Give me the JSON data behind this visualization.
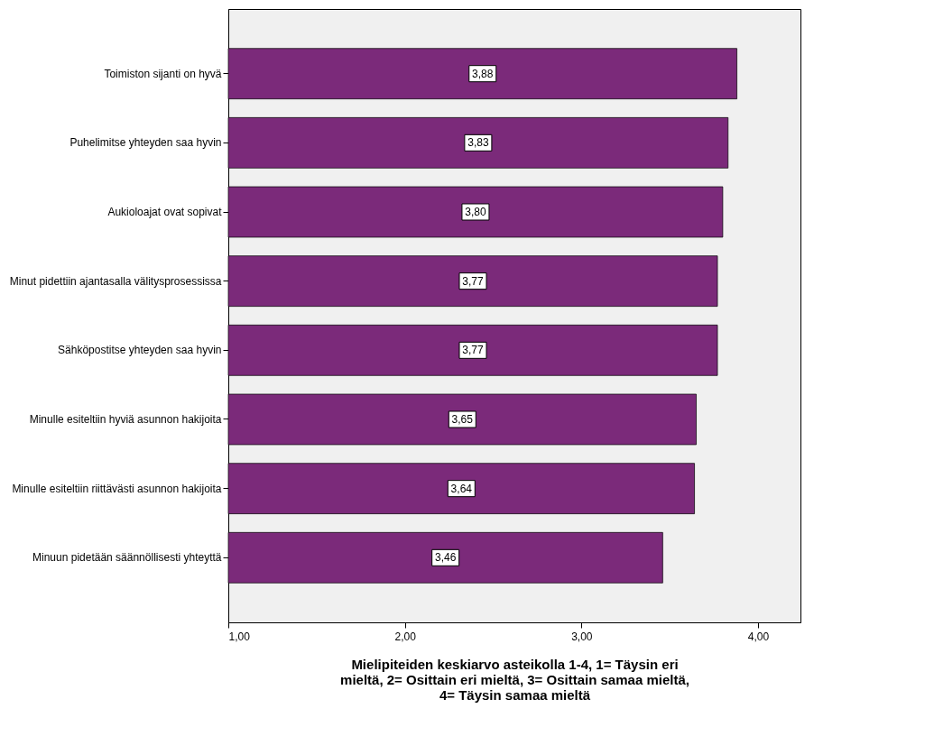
{
  "chart_data": {
    "type": "bar",
    "orientation": "horizontal",
    "categories": [
      "Toimiston sijanti on hyvä",
      "Puhelimitse yhteyden saa hyvin",
      "Aukioloajat ovat sopivat",
      "Minut pidettiin ajantasalla välitysprosessissa",
      "Sähköpostitse yhteyden saa hyvin",
      "Minulle esiteltiin hyviä asunnon hakijoita",
      "Minulle esiteltiin riittävästi asunnon hakijoita",
      "Minuun pidetään säännöllisesti yhteyttä"
    ],
    "values": [
      3.88,
      3.83,
      3.8,
      3.77,
      3.77,
      3.65,
      3.64,
      3.46
    ],
    "value_labels": [
      "3,88",
      "3,83",
      "3,80",
      "3,77",
      "3,77",
      "3,65",
      "3,64",
      "3,46"
    ],
    "color": "#7b2a7a",
    "xlabel": "Mielipiteiden keskiarvo asteikolla 1-4, 1= Täysin eri mieltä, 2= Osittain eri mieltä, 3= Osittain samaa mieltä, 4= Täysin samaa mieltä",
    "xlim": [
      1,
      4.24
    ],
    "xticks": [
      {
        "value": 1,
        "label": "1,00"
      },
      {
        "value": 2,
        "label": "2,00"
      },
      {
        "value": 3,
        "label": "3,00"
      },
      {
        "value": 4,
        "label": "4,00"
      }
    ],
    "grid": false
  }
}
